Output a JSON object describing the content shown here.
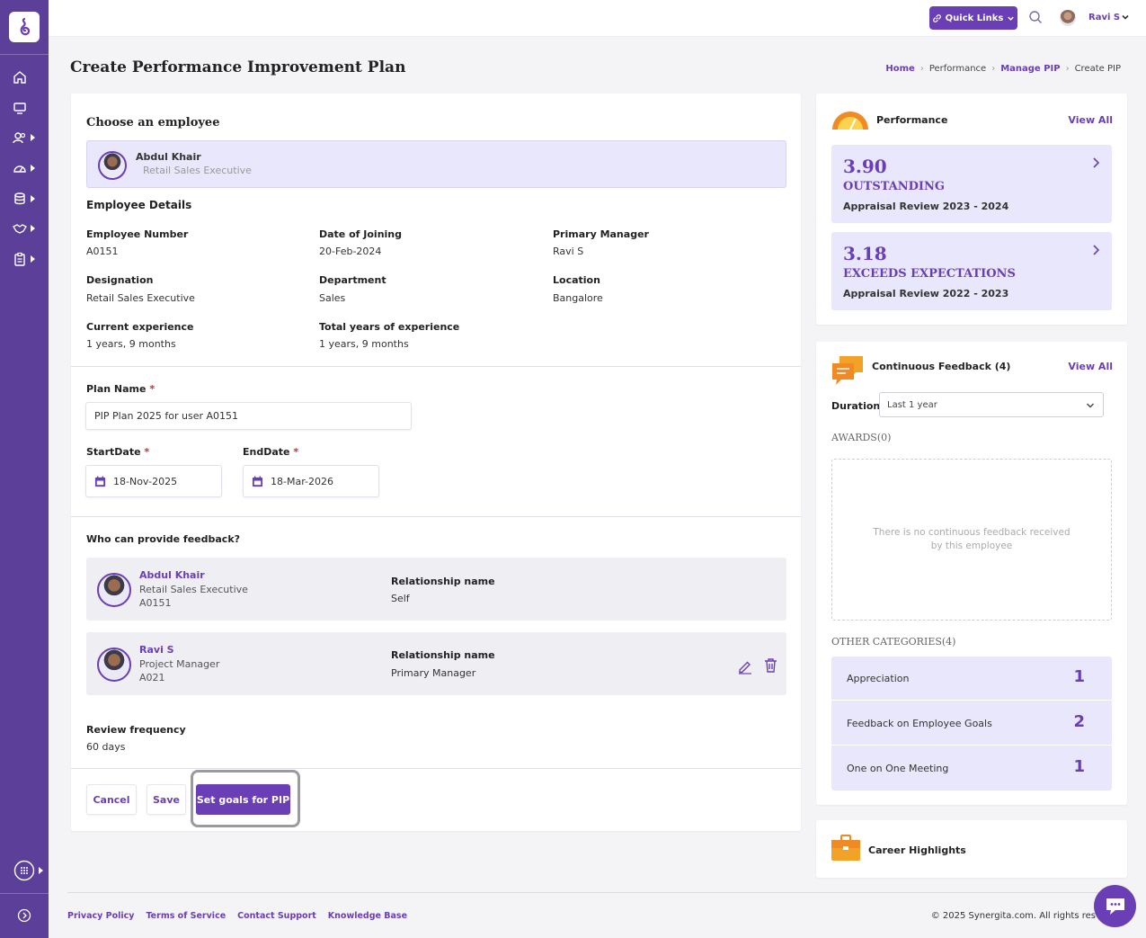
{
  "topbar": {
    "quick_links": "Quick Links",
    "user_name": "Ravi S"
  },
  "page": {
    "title": "Create Performance Improvement Plan",
    "breadcrumbs": [
      "Home",
      "Performance",
      "Manage PIP",
      "Create PIP"
    ]
  },
  "employee_select": {
    "heading": "Choose an employee",
    "name": "Abdul Khair",
    "title": "Retail Sales Executive"
  },
  "details": {
    "heading": "Employee Details",
    "fields": [
      {
        "label": "Employee Number",
        "value": "A0151"
      },
      {
        "label": "Date of Joining",
        "value": "20-Feb-2024"
      },
      {
        "label": "Primary Manager",
        "value": "Ravi S"
      },
      {
        "label": "Designation",
        "value": "Retail Sales Executive"
      },
      {
        "label": "Department",
        "value": "Sales"
      },
      {
        "label": "Location",
        "value": "Bangalore"
      },
      {
        "label": "Current experience",
        "value": "1 years, 9 months"
      },
      {
        "label": "Total years of experience",
        "value": "1 years, 9 months"
      }
    ]
  },
  "plan": {
    "name_label": "Plan Name",
    "name_value": "PIP Plan 2025 for user A0151",
    "start_label": "StartDate",
    "start_value": "18-Nov-2025",
    "end_label": "EndDate",
    "end_value": "18-Mar-2026",
    "required_mark": "*"
  },
  "feedback": {
    "heading": "Who can provide feedback?",
    "rel_label": "Relationship name",
    "providers": [
      {
        "name": "Abdul Khair",
        "title": "Retail Sales Executive",
        "id": "A0151",
        "relationship": "Self"
      },
      {
        "name": "Ravi S",
        "title": "Project Manager",
        "id": "A021",
        "relationship": "Primary Manager"
      }
    ]
  },
  "review": {
    "label": "Review frequency",
    "value": "60 days"
  },
  "actions": {
    "cancel": "Cancel",
    "save": "Save",
    "set_goals": "Set goals for PIP"
  },
  "performance": {
    "title": "Performance",
    "view_all": "View All",
    "reviews": [
      {
        "score": "3.90",
        "rating": "OUTSTANDING",
        "cycle": "Appraisal Review 2023 - 2024"
      },
      {
        "score": "3.18",
        "rating": "EXCEEDS EXPECTATIONS",
        "cycle": "Appraisal Review 2022 - 2023"
      }
    ]
  },
  "continuous_feedback": {
    "title": "Continuous Feedback (4)",
    "view_all": "View All",
    "duration_label": "Duration",
    "duration_value": "Last 1 year",
    "awards_label": "AWARDS(0)",
    "empty_message": "There is no continuous feedback received by this employee",
    "other_label": "OTHER CATEGORIES(4)",
    "categories": [
      {
        "name": "Appreciation",
        "count": "1"
      },
      {
        "name": "Feedback on Employee Goals",
        "count": "2"
      },
      {
        "name": "One on One Meeting",
        "count": "1"
      }
    ]
  },
  "career": {
    "title": "Career Highlights"
  },
  "footer": {
    "links": [
      "Privacy Policy",
      "Terms of Service",
      "Contact Support",
      "Knowledge Base"
    ],
    "copyright": "© 2025 Synergita.com. All rights res"
  },
  "colors": {
    "brand": "#6a3fb6",
    "sidebar": "#5b3f98",
    "highlight_bg": "#e8e7fb"
  }
}
